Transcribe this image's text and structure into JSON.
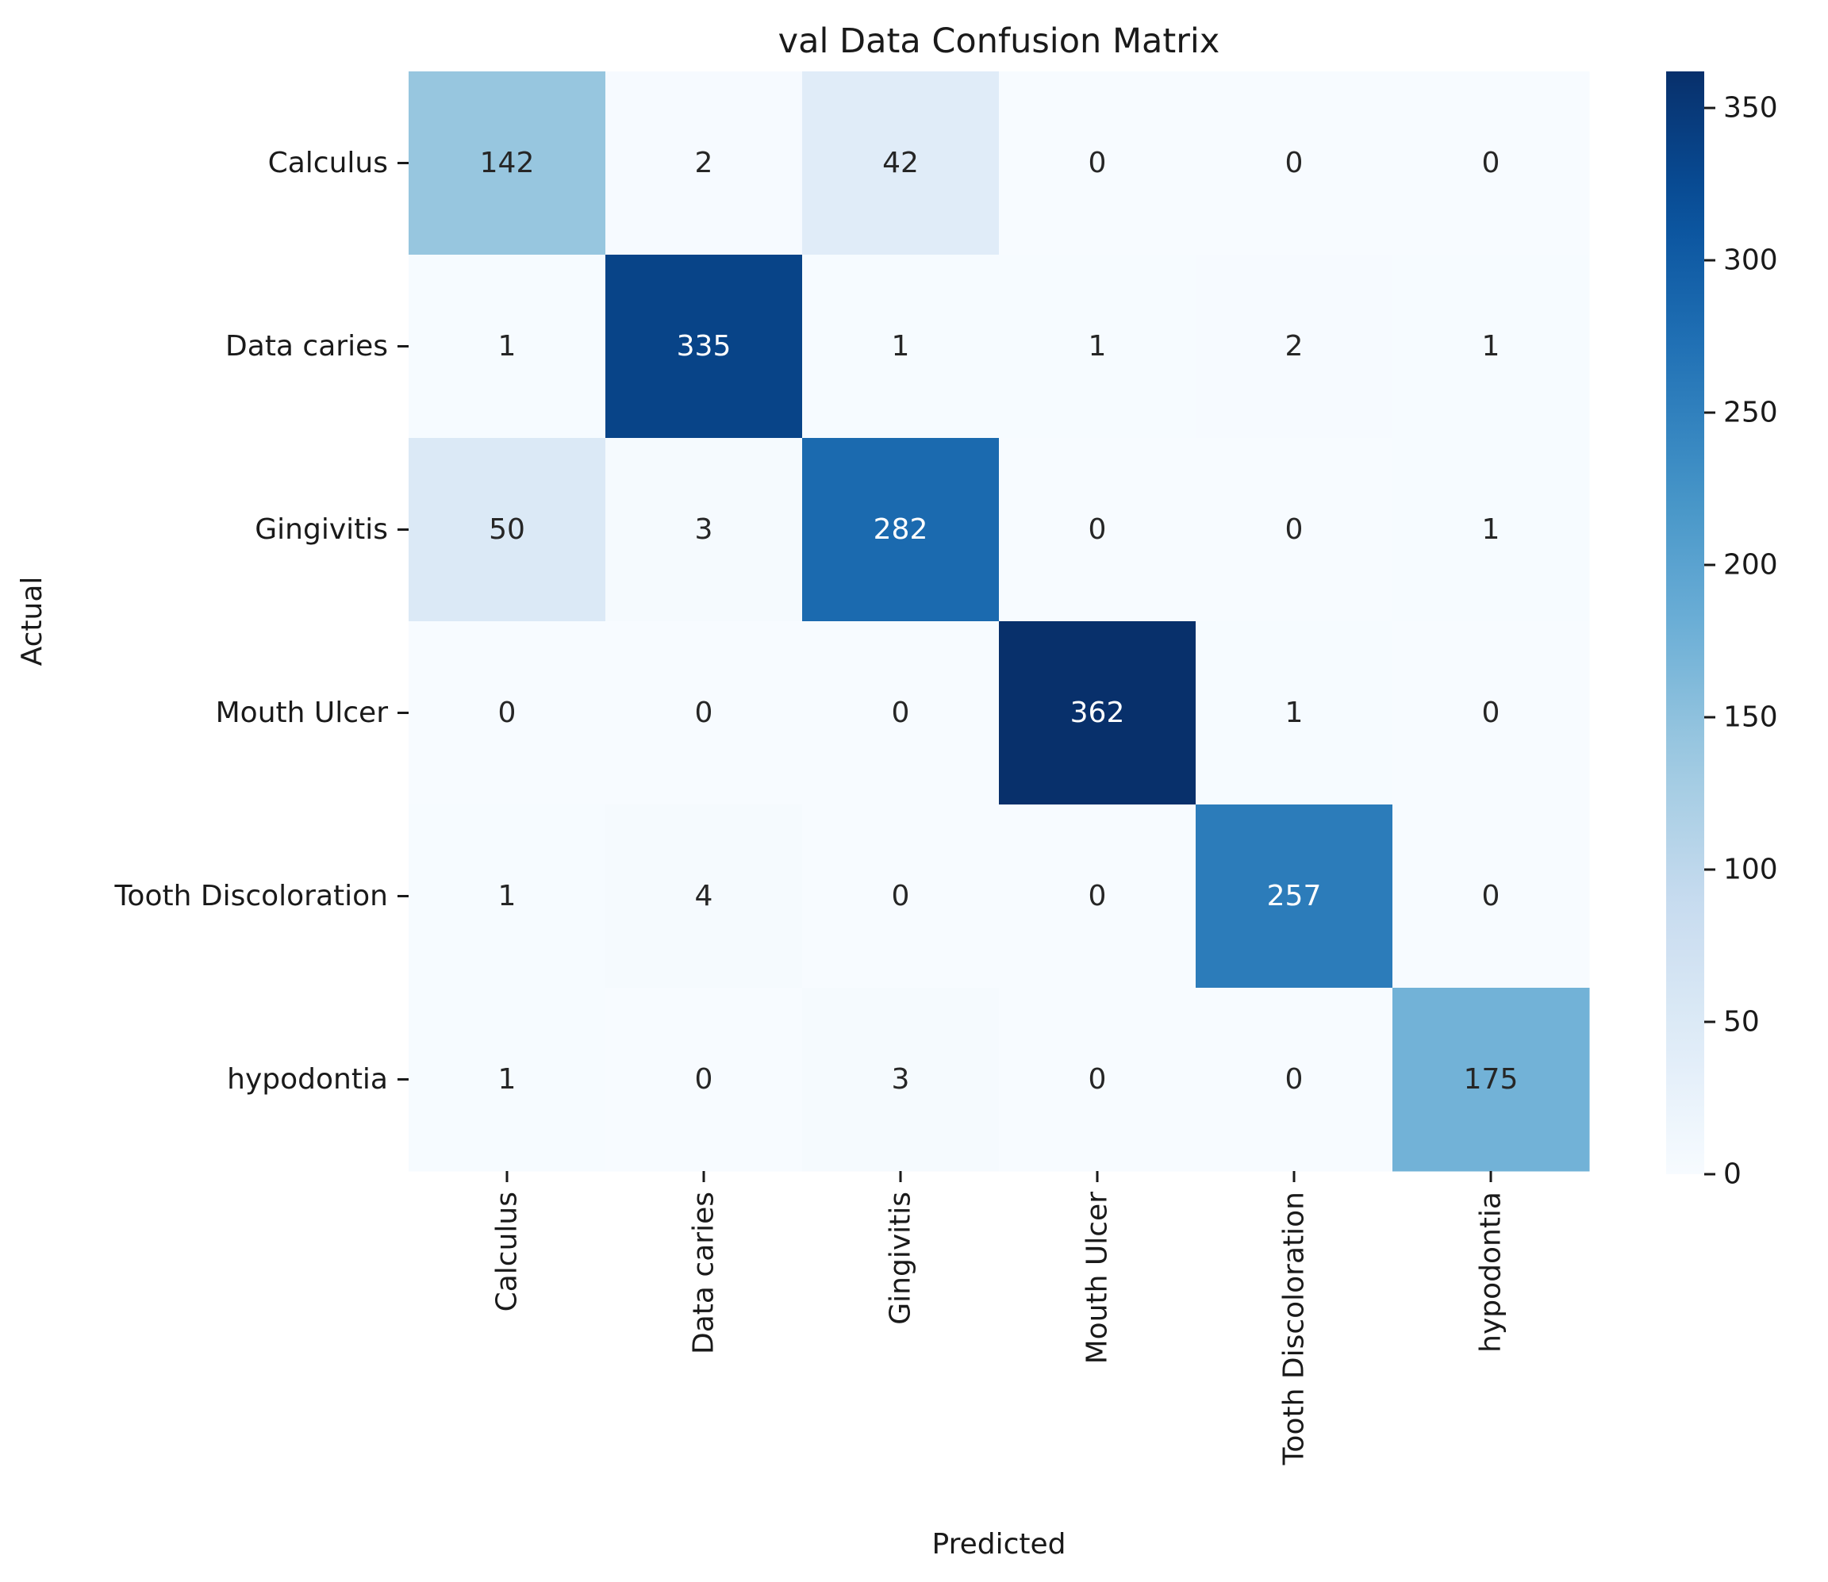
{
  "chart_data": {
    "type": "heatmap",
    "title": "val Data Confusion Matrix",
    "xlabel": "Predicted",
    "ylabel": "Actual",
    "x_categories": [
      "Calculus",
      "Data caries",
      "Gingivitis",
      "Mouth Ulcer",
      "Tooth Discoloration",
      "hypodontia"
    ],
    "y_categories": [
      "Calculus",
      "Data caries",
      "Gingivitis",
      "Mouth Ulcer",
      "Tooth Discoloration",
      "hypodontia"
    ],
    "values": [
      [
        142,
        2,
        42,
        0,
        0,
        0
      ],
      [
        1,
        335,
        1,
        1,
        2,
        1
      ],
      [
        50,
        3,
        282,
        0,
        0,
        1
      ],
      [
        0,
        0,
        0,
        362,
        1,
        0
      ],
      [
        1,
        4,
        0,
        0,
        257,
        0
      ],
      [
        1,
        0,
        3,
        0,
        0,
        175
      ]
    ],
    "colormap": "Blues",
    "colorbar": {
      "min": 0,
      "max": 362,
      "ticks": [
        0,
        50,
        100,
        150,
        200,
        250,
        300,
        350
      ]
    },
    "annotation_colors": {
      "dark_text": "#262626",
      "light_text": "#ffffff"
    }
  }
}
